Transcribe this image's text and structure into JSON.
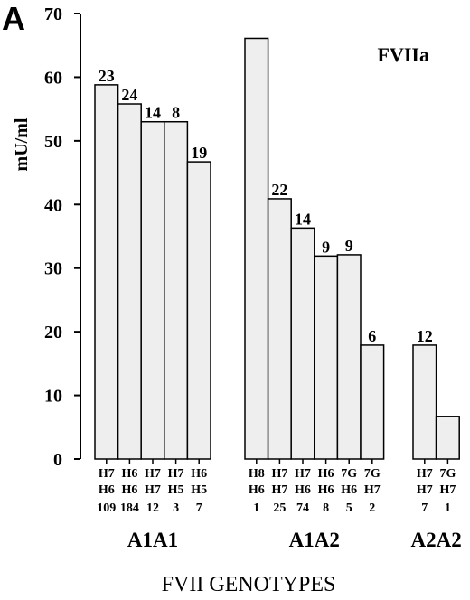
{
  "panel_label": "A",
  "chart_data": {
    "type": "bar",
    "title": "FVIIa",
    "xlabel": "FVII GENOTYPES",
    "ylabel": "mU/ml",
    "ylim": [
      0,
      70
    ],
    "yticks": [
      "0",
      "10",
      "20",
      "30",
      "40",
      "50",
      "60",
      "70"
    ],
    "grid": false,
    "bar_color": "#eeeeee",
    "groups": [
      {
        "name": "A1A1",
        "bars": [
          {
            "top": "H7",
            "bottom": "H6",
            "n": "109",
            "value": 58.8,
            "count_label": "23"
          },
          {
            "top": "H6",
            "bottom": "H6",
            "n": "184",
            "value": 55.8,
            "count_label": "24"
          },
          {
            "top": "H7",
            "bottom": "H7",
            "n": "12",
            "value": 53.0,
            "count_label": "14"
          },
          {
            "top": "H7",
            "bottom": "H5",
            "n": "3",
            "value": 53.0,
            "count_label": "8"
          },
          {
            "top": "H6",
            "bottom": "H5",
            "n": "7",
            "value": 46.7,
            "count_label": "19"
          }
        ]
      },
      {
        "name": "A1A2",
        "bars": [
          {
            "top": "H8",
            "bottom": "H6",
            "n": "1",
            "value": 66.1,
            "count_label": ""
          },
          {
            "top": "H7",
            "bottom": "H7",
            "n": "25",
            "value": 40.9,
            "count_label": "22"
          },
          {
            "top": "H7",
            "bottom": "H6",
            "n": "74",
            "value": 36.3,
            "count_label": "14"
          },
          {
            "top": "H6",
            "bottom": "H6",
            "n": "8",
            "value": 31.9,
            "count_label": "9"
          },
          {
            "top": "7G",
            "bottom": "H6",
            "n": "5",
            "value": 32.1,
            "count_label": "9"
          },
          {
            "top": "7G",
            "bottom": "H7",
            "n": "2",
            "value": 17.9,
            "count_label": "6"
          }
        ]
      },
      {
        "name": "A2A2",
        "bars": [
          {
            "top": "H7",
            "bottom": "H7",
            "n": "7",
            "value": 17.9,
            "count_label": "12"
          },
          {
            "top": "7G",
            "bottom": "H7",
            "n": "1",
            "value": 6.7,
            "count_label": ""
          }
        ]
      }
    ]
  }
}
